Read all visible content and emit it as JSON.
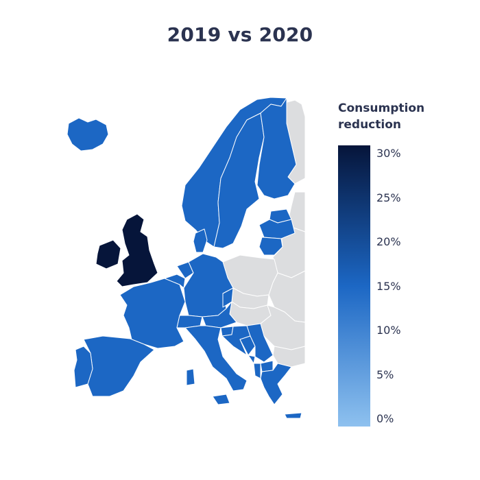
{
  "title": "2019 vs 2020",
  "legend": {
    "title_line1": "Consumption",
    "title_line2": "reduction",
    "ticks": [
      "30%",
      "25%",
      "20%",
      "15%",
      "10%",
      "5%",
      "0%"
    ],
    "range": [
      0,
      30
    ],
    "color_low": "#8ec1ef",
    "color_mid": "#1c67c4",
    "color_high": "#06153a"
  },
  "colors": {
    "no_data": "#dcdddf",
    "border": "#ffffff",
    "reduction_high": "#06153a",
    "reduction_mid": "#1c67c4"
  },
  "regions": [
    {
      "name": "Ireland",
      "level": "high"
    },
    {
      "name": "United Kingdom",
      "level": "high"
    },
    {
      "name": "Iceland",
      "level": "mid"
    },
    {
      "name": "Norway",
      "level": "mid"
    },
    {
      "name": "Sweden",
      "level": "mid"
    },
    {
      "name": "Finland",
      "level": "mid"
    },
    {
      "name": "Denmark",
      "level": "mid"
    },
    {
      "name": "Estonia",
      "level": "mid"
    },
    {
      "name": "Latvia",
      "level": "mid"
    },
    {
      "name": "Lithuania",
      "level": "mid"
    },
    {
      "name": "Netherlands",
      "level": "mid"
    },
    {
      "name": "Belgium",
      "level": "mid"
    },
    {
      "name": "Luxembourg",
      "level": "mid"
    },
    {
      "name": "France",
      "level": "mid"
    },
    {
      "name": "Germany",
      "level": "mid"
    },
    {
      "name": "Switzerland",
      "level": "mid"
    },
    {
      "name": "Austria",
      "level": "mid"
    },
    {
      "name": "Czechia",
      "level": "mid"
    },
    {
      "name": "Spain",
      "level": "mid"
    },
    {
      "name": "Portugal",
      "level": "mid"
    },
    {
      "name": "Italy",
      "level": "mid"
    },
    {
      "name": "Slovenia",
      "level": "mid"
    },
    {
      "name": "Croatia",
      "level": "mid"
    },
    {
      "name": "Bosnia and Herzegovina",
      "level": "mid"
    },
    {
      "name": "Serbia",
      "level": "mid"
    },
    {
      "name": "Montenegro",
      "level": "mid"
    },
    {
      "name": "North Macedonia",
      "level": "mid"
    },
    {
      "name": "Albania",
      "level": "mid"
    },
    {
      "name": "Greece",
      "level": "mid"
    },
    {
      "name": "Poland",
      "level": "none"
    },
    {
      "name": "Belarus",
      "level": "none"
    },
    {
      "name": "Ukraine",
      "level": "none"
    },
    {
      "name": "Russia",
      "level": "none"
    },
    {
      "name": "Slovakia",
      "level": "none"
    },
    {
      "name": "Hungary",
      "level": "none"
    },
    {
      "name": "Romania",
      "level": "none"
    },
    {
      "name": "Bulgaria",
      "level": "none"
    },
    {
      "name": "Moldova",
      "level": "none"
    }
  ]
}
